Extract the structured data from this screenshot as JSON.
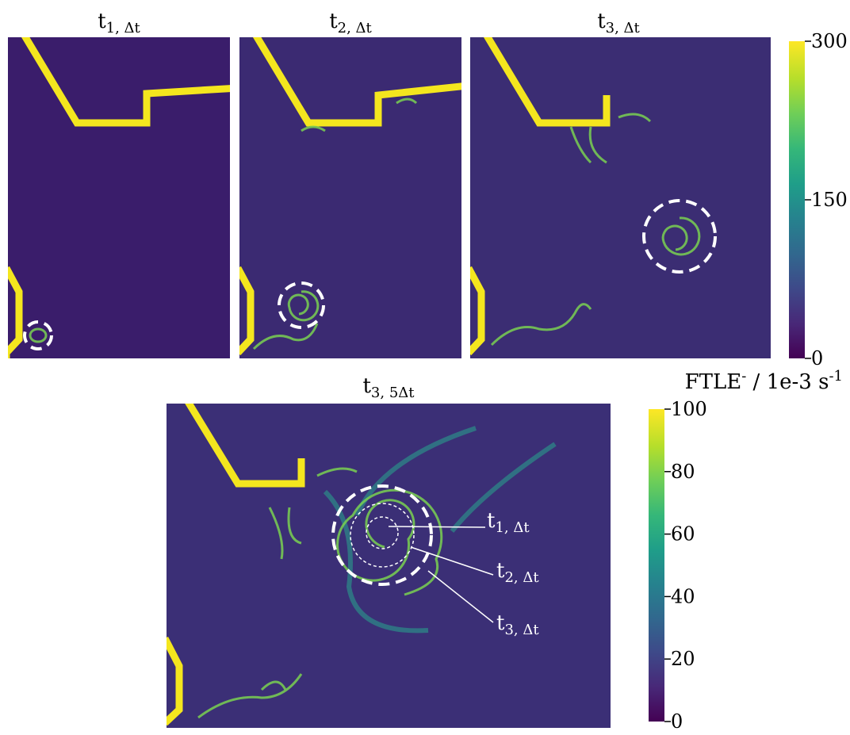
{
  "panels": [
    {
      "title": "t",
      "subscript": "1, Δt"
    },
    {
      "title": "t",
      "subscript": "2, Δt"
    },
    {
      "title": "t",
      "subscript": "3, Δt"
    }
  ],
  "main_panel": {
    "title": "t",
    "subscript": "3, 5Δt",
    "annotations": [
      {
        "text": "t",
        "subscript": "1, Δt"
      },
      {
        "text": "t",
        "subscript": "2, Δt"
      },
      {
        "text": "t",
        "subscript": "3, Δt"
      }
    ]
  },
  "colorbars": [
    {
      "range": [
        0,
        300
      ],
      "ticks": [
        0,
        150,
        300
      ]
    },
    {
      "range": [
        0,
        100
      ],
      "ticks": [
        0,
        20,
        40,
        60,
        80,
        100
      ]
    }
  ],
  "colorbar_label": {
    "name": "FTLE",
    "name_sup": "-",
    "unit": " / 1e-3 s",
    "unit_sup": "-1"
  }
}
